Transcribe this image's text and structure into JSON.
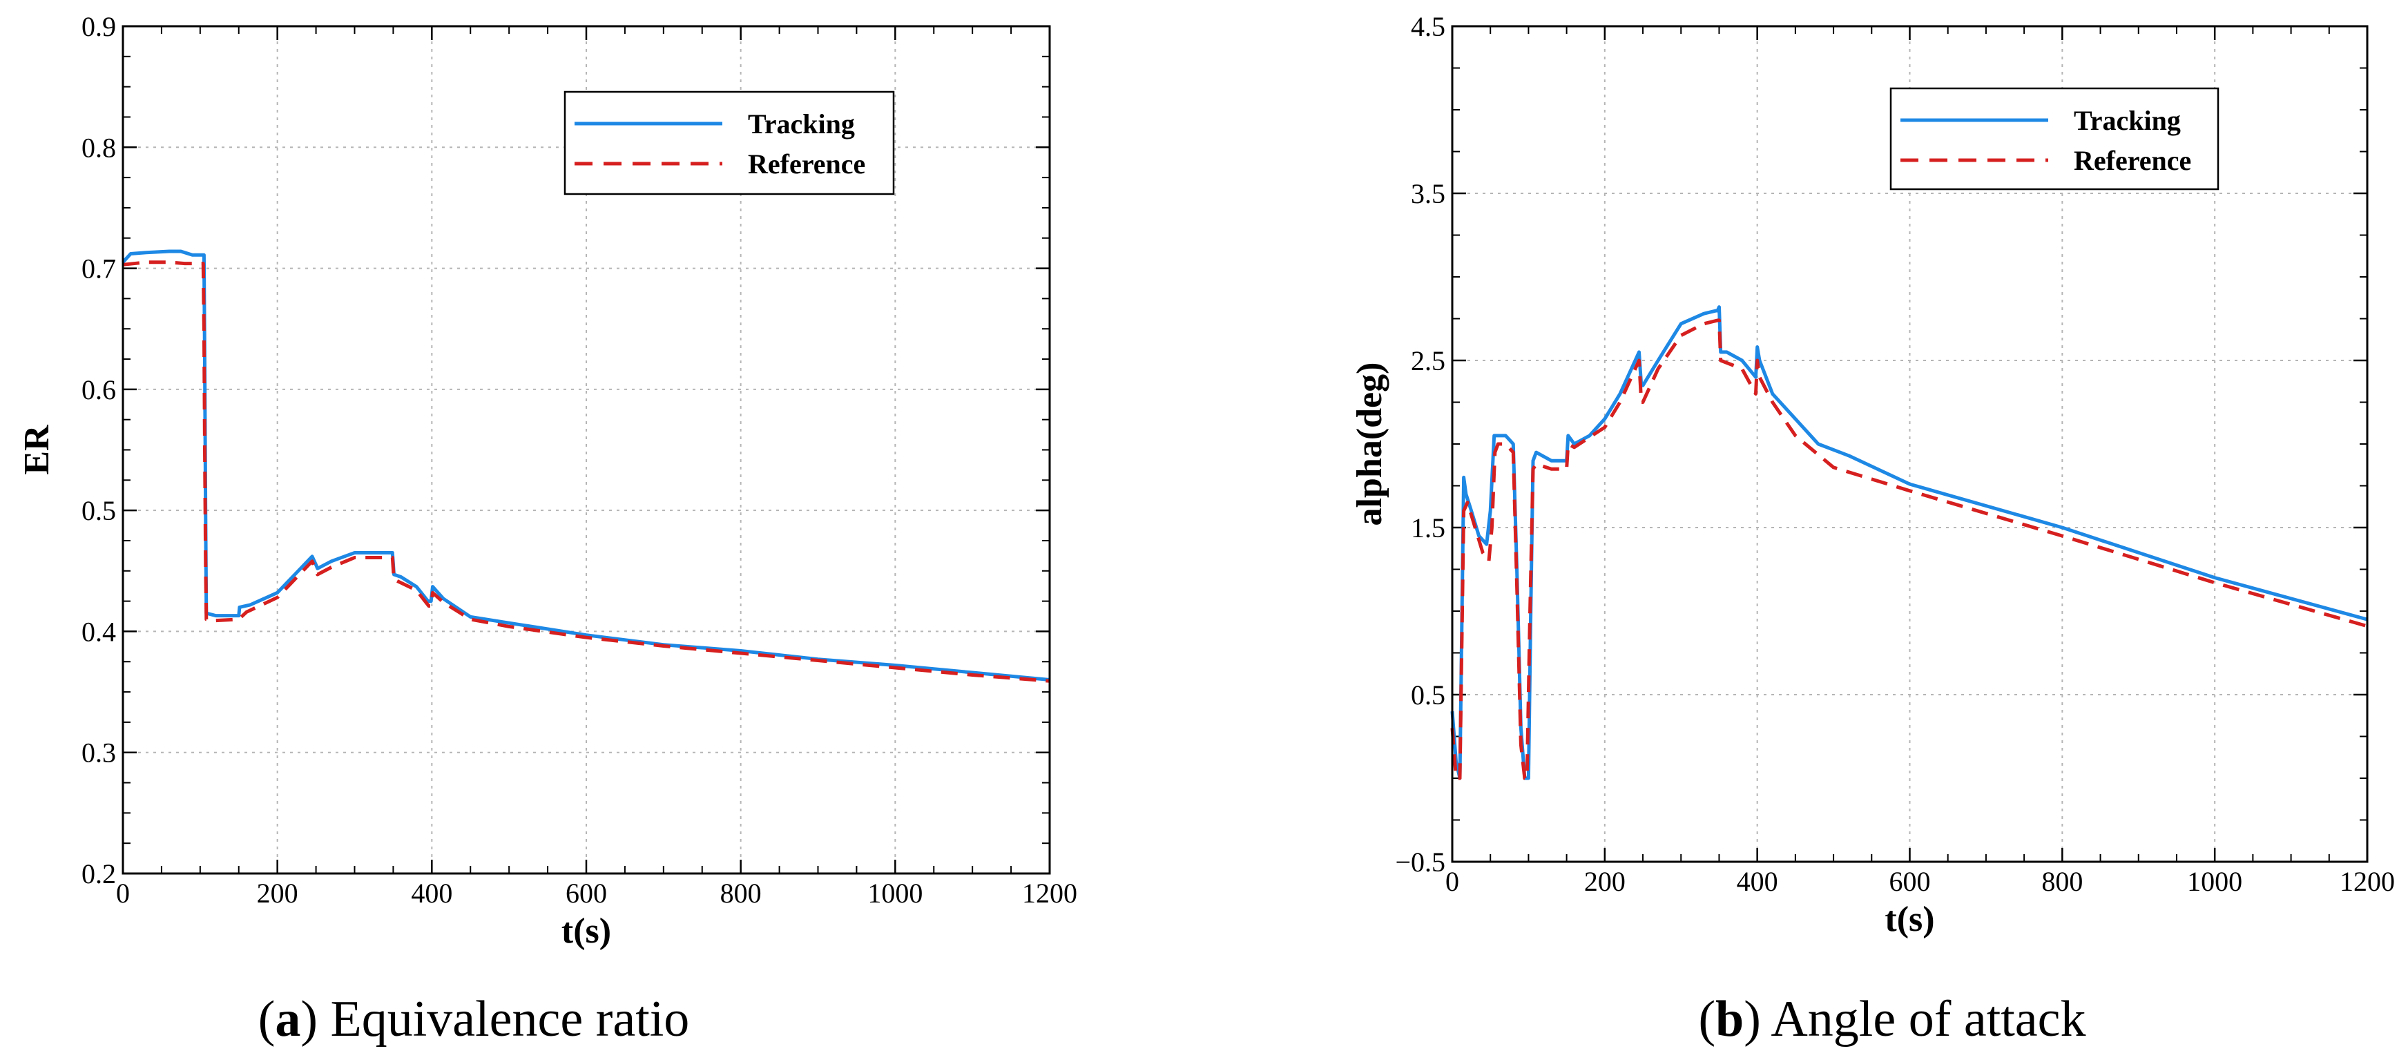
{
  "colors": {
    "tracking": "#1e88e5",
    "reference": "#d61f1f",
    "grid": "#b5b5b5",
    "axis": "#000000"
  },
  "chart_data": [
    {
      "type": "line",
      "caption_letter": "a",
      "caption_text": "Equivalence ratio",
      "xlabel": "t(s)",
      "ylabel": "ER",
      "xlim": [
        0,
        1200
      ],
      "ylim": [
        0.2,
        0.9
      ],
      "xticks": [
        0,
        200,
        400,
        600,
        800,
        1000,
        1200
      ],
      "xtick_labels": [
        "0",
        "200",
        "400",
        "600",
        "800",
        "1000",
        "1200"
      ],
      "yticks": [
        0.2,
        0.3,
        0.4,
        0.5,
        0.6,
        0.7,
        0.8,
        0.9
      ],
      "ytick_labels": [
        "0.2",
        "0.3",
        "0.4",
        "0.5",
        "0.6",
        "0.7",
        "0.8",
        "0.9"
      ],
      "grid": true,
      "legend_position": "top-right",
      "series": [
        {
          "name": "Tracking",
          "style": "solid",
          "x": [
            0,
            10,
            30,
            60,
            75,
            90,
            105,
            106,
            107,
            108,
            120,
            150,
            151,
            165,
            200,
            245,
            250,
            252,
            270,
            300,
            345,
            349,
            351,
            360,
            380,
            395,
            399,
            401,
            415,
            450,
            500,
            600,
            700,
            800,
            900,
            1000,
            1100,
            1200
          ],
          "y": [
            0.705,
            0.712,
            0.713,
            0.714,
            0.714,
            0.711,
            0.711,
            0.62,
            0.5,
            0.415,
            0.413,
            0.413,
            0.42,
            0.422,
            0.432,
            0.462,
            0.455,
            0.452,
            0.458,
            0.465,
            0.465,
            0.465,
            0.447,
            0.445,
            0.437,
            0.425,
            0.425,
            0.437,
            0.427,
            0.412,
            0.407,
            0.397,
            0.389,
            0.384,
            0.377,
            0.372,
            0.366,
            0.36
          ]
        },
        {
          "name": "Reference",
          "style": "dashed",
          "x": [
            0,
            30,
            60,
            80,
            100,
            104,
            105,
            106,
            107,
            108,
            120,
            150,
            160,
            200,
            245,
            250,
            252,
            270,
            300,
            345,
            349,
            351,
            380,
            396,
            399,
            401,
            415,
            450,
            500,
            600,
            700,
            800,
            900,
            1000,
            1100,
            1200
          ],
          "y": [
            0.703,
            0.705,
            0.705,
            0.704,
            0.704,
            0.704,
            0.65,
            0.55,
            0.46,
            0.41,
            0.409,
            0.41,
            0.416,
            0.428,
            0.458,
            0.45,
            0.447,
            0.453,
            0.461,
            0.461,
            0.461,
            0.443,
            0.434,
            0.421,
            0.421,
            0.432,
            0.424,
            0.41,
            0.404,
            0.395,
            0.388,
            0.382,
            0.376,
            0.37,
            0.364,
            0.359
          ]
        }
      ]
    },
    {
      "type": "line",
      "caption_letter": "b",
      "caption_text": "Angle of attack",
      "xlabel": "t(s)",
      "ylabel": "alpha(deg)",
      "xlim": [
        0,
        1200
      ],
      "ylim": [
        -0.5,
        4.5
      ],
      "xticks": [
        0,
        200,
        400,
        600,
        800,
        1000,
        1200
      ],
      "xtick_labels": [
        "0",
        "200",
        "400",
        "600",
        "800",
        "1000",
        "1200"
      ],
      "yticks": [
        -0.5,
        0.5,
        1.5,
        2.5,
        3.5,
        4.5
      ],
      "ytick_labels": [
        "−0.5",
        "0.5",
        "1.5",
        "2.5",
        "3.5",
        "4.5"
      ],
      "grid": true,
      "legend_position": "top-right",
      "series": [
        {
          "name": "Tracking",
          "style": "solid",
          "x": [
            0,
            5,
            10,
            15,
            18,
            25,
            35,
            45,
            50,
            55,
            60,
            65,
            70,
            80,
            85,
            90,
            95,
            100,
            103,
            106,
            110,
            130,
            150,
            152,
            160,
            180,
            200,
            220,
            245,
            248,
            250,
            270,
            300,
            330,
            348,
            350,
            352,
            360,
            380,
            398,
            400,
            403,
            420,
            450,
            480,
            520,
            600,
            800,
            1000,
            1200
          ],
          "y": [
            0.4,
            0.1,
            0.0,
            1.8,
            1.7,
            1.6,
            1.45,
            1.4,
            1.6,
            2.05,
            2.05,
            2.05,
            2.05,
            2.0,
            1.2,
            0.3,
            0.0,
            0.0,
            1.0,
            1.9,
            1.95,
            1.9,
            1.9,
            2.05,
            2.0,
            2.05,
            2.15,
            2.3,
            2.55,
            2.35,
            2.35,
            2.5,
            2.72,
            2.78,
            2.8,
            2.82,
            2.55,
            2.55,
            2.5,
            2.4,
            2.58,
            2.5,
            2.3,
            2.15,
            2.0,
            1.93,
            1.76,
            1.5,
            1.2,
            0.95
          ]
        },
        {
          "name": "Reference",
          "style": "dashed",
          "x": [
            0,
            5,
            10,
            15,
            20,
            30,
            40,
            48,
            52,
            56,
            60,
            65,
            70,
            80,
            85,
            90,
            95,
            98,
            102,
            106,
            110,
            130,
            150,
            152,
            160,
            200,
            220,
            245,
            248,
            250,
            270,
            300,
            330,
            348,
            350,
            352,
            380,
            398,
            400,
            403,
            420,
            450,
            500,
            600,
            800,
            1000,
            1200
          ],
          "y": [
            0.3,
            0.0,
            0.0,
            1.6,
            1.65,
            1.5,
            1.35,
            1.3,
            1.5,
            1.95,
            2.0,
            2.0,
            2.0,
            1.95,
            1.1,
            0.2,
            0.0,
            0.0,
            1.0,
            1.85,
            1.88,
            1.85,
            1.85,
            2.0,
            1.98,
            2.1,
            2.25,
            2.5,
            2.25,
            2.25,
            2.45,
            2.65,
            2.72,
            2.74,
            2.74,
            2.5,
            2.45,
            2.3,
            2.5,
            2.4,
            2.25,
            2.05,
            1.86,
            1.72,
            1.45,
            1.17,
            0.91
          ]
        }
      ]
    }
  ]
}
